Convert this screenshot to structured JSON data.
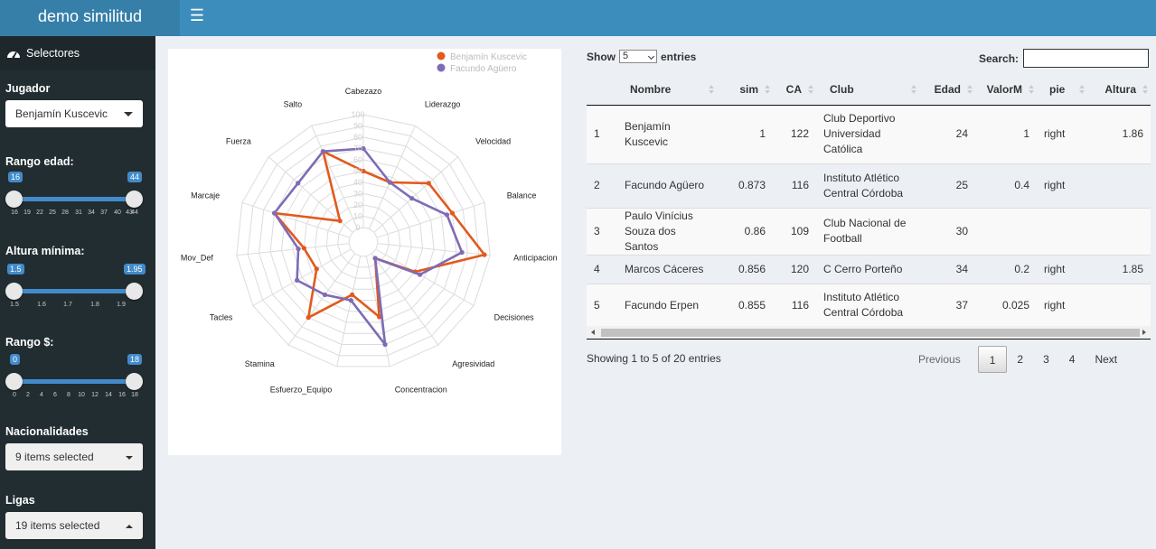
{
  "header": {
    "logo": "demo similitud",
    "menu_icon": "hamburger-icon"
  },
  "sidebar": {
    "menu_label": "Selectores",
    "menu_icon": "dashboard-icon",
    "jugador": {
      "label": "Jugador",
      "value": "Benjamín Kuscevic"
    },
    "rango_edad": {
      "label": "Rango edad:",
      "min": "16",
      "max": "44",
      "ticks": [
        "16",
        "19",
        "22",
        "25",
        "28",
        "31",
        "34",
        "37",
        "40",
        "43",
        "44"
      ]
    },
    "altura": {
      "label": "Altura mínima:",
      "min": "1.5",
      "max": "1.95",
      "ticks": [
        "1.5",
        "1.6",
        "1.7",
        "1.8",
        "1.9"
      ]
    },
    "rango_precio": {
      "label": "Rango $:",
      "min": "0",
      "max": "18",
      "ticks": [
        "0",
        "2",
        "4",
        "6",
        "8",
        "10",
        "12",
        "14",
        "16",
        "18"
      ]
    },
    "nacionalidades": {
      "label": "Nacionalidades",
      "value": "9 items selected"
    },
    "ligas": {
      "label": "Ligas",
      "value": "19 items selected"
    }
  },
  "radar": {
    "legend": [
      {
        "name": "Benjamín Kuscevic",
        "color": "#e15a1e"
      },
      {
        "name": "Facundo Agüero",
        "color": "#7e6cb5"
      }
    ],
    "ticks": [
      "0",
      "10",
      "20",
      "30",
      "40",
      "50",
      "60",
      "70",
      "80",
      "90",
      "100"
    ]
  },
  "chart_data": {
    "type": "radar",
    "categories": [
      "Cabezazo",
      "Liderazgo",
      "Velocidad",
      "Balance",
      "Anticipacion",
      "Decisiones",
      "Agresividad",
      "Concentracion",
      "Esfuerzo_Equipo",
      "Stamina",
      "Tacles",
      "Mov_Def",
      "Marcaje",
      "Fuerza",
      "Salto"
    ],
    "range": [
      0,
      100
    ],
    "series": [
      {
        "name": "Benjamín Kuscevic",
        "color": "#e15a1e",
        "values": [
          50,
          45,
          65,
          70,
          95,
          40,
          5,
          55,
          35,
          70,
          35,
          40,
          70,
          15,
          75
        ]
      },
      {
        "name": "Facundo Agüero",
        "color": "#7e6cb5",
        "values": [
          70,
          45,
          45,
          65,
          75,
          45,
          5,
          80,
          40,
          45,
          55,
          45,
          70,
          65,
          75
        ]
      }
    ]
  },
  "table": {
    "length_label_pre": "Show",
    "length_value": "5",
    "length_label_post": "entries",
    "search_label": "Search:",
    "columns": [
      "",
      "Nombre",
      "sim",
      "CA",
      "Club",
      "Edad",
      "ValorM",
      "pie",
      "Altura"
    ],
    "rows": [
      [
        "1",
        "Benjamín Kuscevic",
        "1",
        "122",
        "Club Deportivo Universidad Católica",
        "24",
        "1",
        "right",
        "1.86"
      ],
      [
        "2",
        "Facundo Agüero",
        "0.873",
        "116",
        "Instituto Atlético Central Córdoba",
        "25",
        "0.4",
        "right",
        ""
      ],
      [
        "3",
        "Paulo Vinícius Souza dos Santos",
        "0.86",
        "109",
        "Club Nacional de Football",
        "30",
        "",
        "",
        ""
      ],
      [
        "4",
        "Marcos Cáceres",
        "0.856",
        "120",
        "C Cerro Porteño",
        "34",
        "0.2",
        "right",
        "1.85"
      ],
      [
        "5",
        "Facundo Erpen",
        "0.855",
        "116",
        "Instituto Atlético Central Córdoba",
        "37",
        "0.025",
        "right",
        ""
      ]
    ],
    "info": "Showing 1 to 5 of 20 entries",
    "pagination": {
      "previous": "Previous",
      "pages": [
        "1",
        "2",
        "3",
        "4"
      ],
      "current": "1",
      "next": "Next"
    }
  }
}
